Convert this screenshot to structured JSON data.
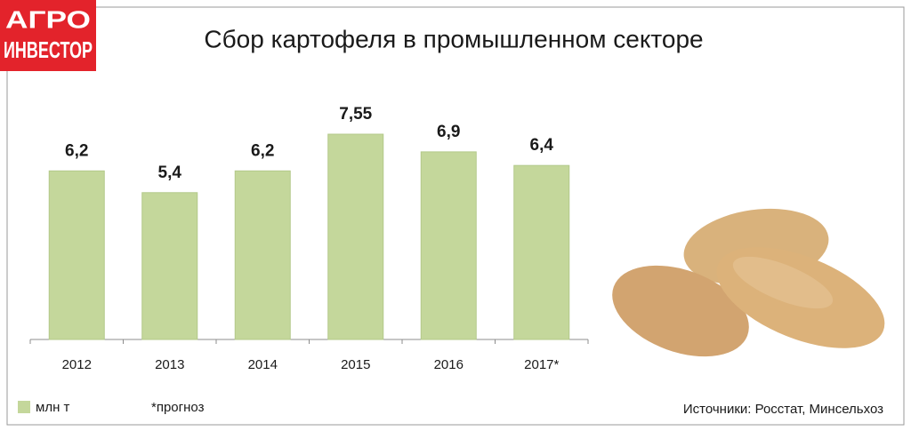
{
  "logo": {
    "top": "АГРО",
    "bottom": "ИНВЕСТОР"
  },
  "chart_data": {
    "type": "bar",
    "title": "Сбор картофеля в промышленном секторе",
    "categories": [
      "2012",
      "2013",
      "2014",
      "2015",
      "2016",
      "2017*"
    ],
    "series": [
      {
        "name": "млн т",
        "color": "#c4d79b",
        "values": [
          6.2,
          5.4,
          6.2,
          7.55,
          6.9,
          6.4
        ],
        "value_labels": [
          "6,2",
          "5,4",
          "6,2",
          "7,55",
          "6,9",
          "6,4"
        ]
      }
    ],
    "note": "*прогноз",
    "source": "Источники: Росстат,  Минсельхоз"
  }
}
